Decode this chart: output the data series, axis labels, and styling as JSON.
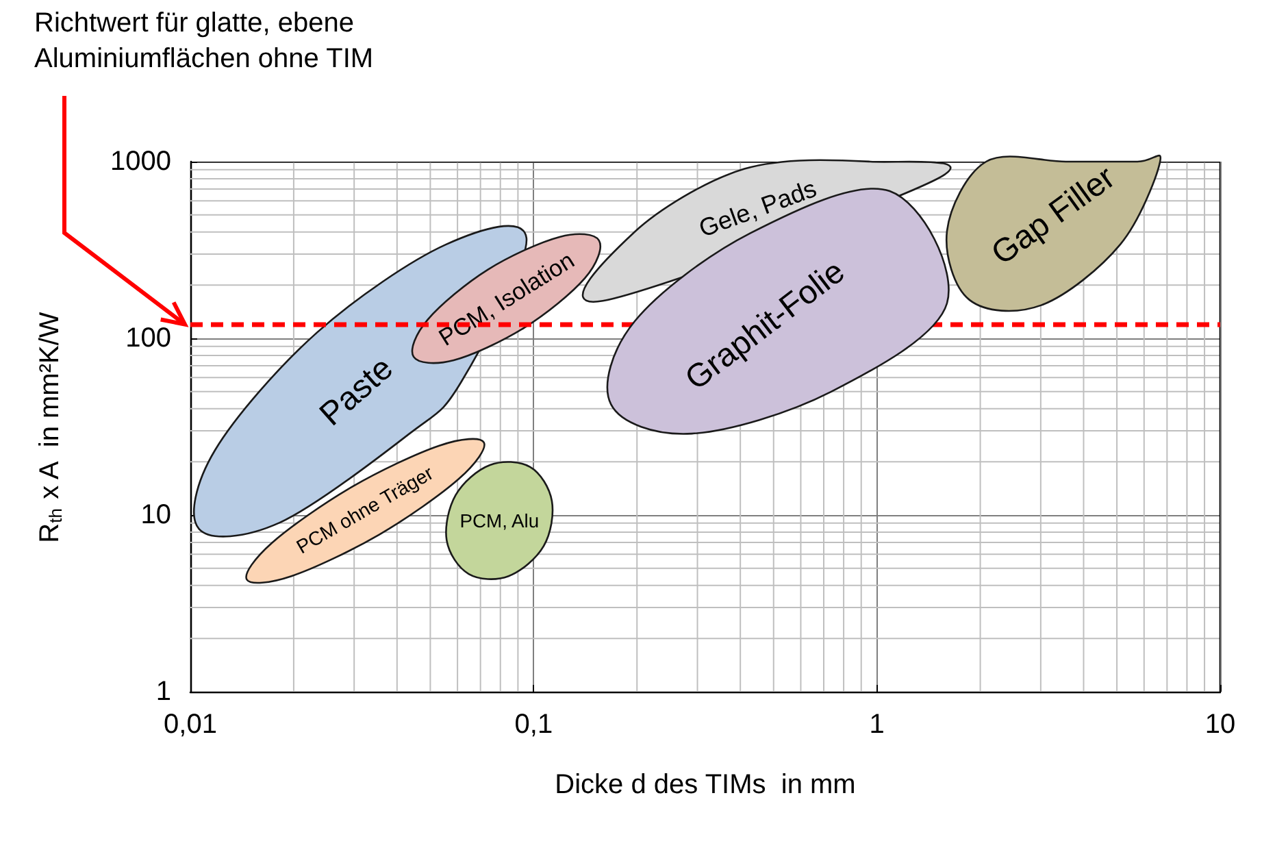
{
  "chart_data": {
    "type": "area",
    "xlabel": "Dicke d des TIMs  in mm",
    "ylabel": "R$_{th}$ x A  in mm²K/W",
    "log": "xy",
    "grid": true,
    "xlim": [
      0.01,
      10
    ],
    "xticks": [
      {
        "value": 0.01,
        "label": "0,01"
      },
      {
        "value": 0.1,
        "label": "0,1"
      },
      1,
      10
    ],
    "ylim": [
      1,
      1000
    ],
    "yticks": [
      1,
      10,
      100,
      1000
    ],
    "ref_lines": [
      {
        "axis": "y",
        "value": 120,
        "label": "Richtwert für glatte, ebene Aluminiumflächen ohne TIM",
        "color": "#ff0000",
        "line_style": "dashed"
      }
    ],
    "series": [
      {
        "name": "Paste",
        "color": "#b9cde5",
        "x": [
          0.0953,
          0.0615,
          0.0431,
          0.0182,
          0.0106,
          0.0118,
          0.0234,
          0.0556
        ],
        "values": [
          369,
          56.6,
          28.5,
          9.05,
          8.34,
          23.3,
          108,
          340
        ]
      },
      {
        "name": "PCM, Isolation",
        "color": "#e6b9b8",
        "x": [
          0.155,
          0.141,
          0.094,
          0.0585,
          0.0447,
          0.0492,
          0.0736,
          0.119
        ],
        "values": [
          358,
          219,
          115,
          75.2,
          78.7,
          128,
          245,
          375
        ]
      },
      {
        "name": "PCM ohne Träger",
        "color": "#fcd5b5",
        "x": [
          0.0716,
          0.0605,
          0.0355,
          0.0197,
          0.0146,
          0.0173,
          0.0295,
          0.0531
        ],
        "values": [
          25.8,
          16.0,
          7.75,
          4.51,
          4.32,
          6.97,
          14.4,
          24.7
        ]
      },
      {
        "name": "PCM, Alu",
        "color": "#c3d69b",
        "x": [
          0.0977,
          0.113,
          0.107,
          0.0845,
          0.0647,
          0.0558,
          0.0593,
          0.0746
        ],
        "values": [
          18.7,
          12.0,
          6.69,
          4.51,
          4.64,
          7.2,
          13.0,
          19.2
        ]
      },
      {
        "name": "Gele, Pads",
        "color": "#d9d9d9",
        "x": [
          1.5,
          0.159,
          0.196,
          0.411,
          0.955
        ],
        "values": [
          800,
          163,
          397,
          910,
          1000
        ]
      },
      {
        "name": "Graphit-Folie",
        "color": "#ccc1da",
        "x": [
          1.6,
          0.736,
          0.289,
          0.168,
          0.197,
          0.428,
          1.09
        ],
        "values": [
          158,
          49.9,
          28.9,
          42.3,
          125,
          394,
          681
        ]
      },
      {
        "name": "Gap Filler",
        "color": "#c4bd97",
        "x": [
          5.74,
          6.68,
          5.12,
          3.01,
          1.86,
          1.6,
          2.08,
          3.55
        ],
        "values": [
          1000,
          1000,
          341,
          154,
          165,
          405,
          1000,
          1000
        ]
      }
    ]
  }
}
